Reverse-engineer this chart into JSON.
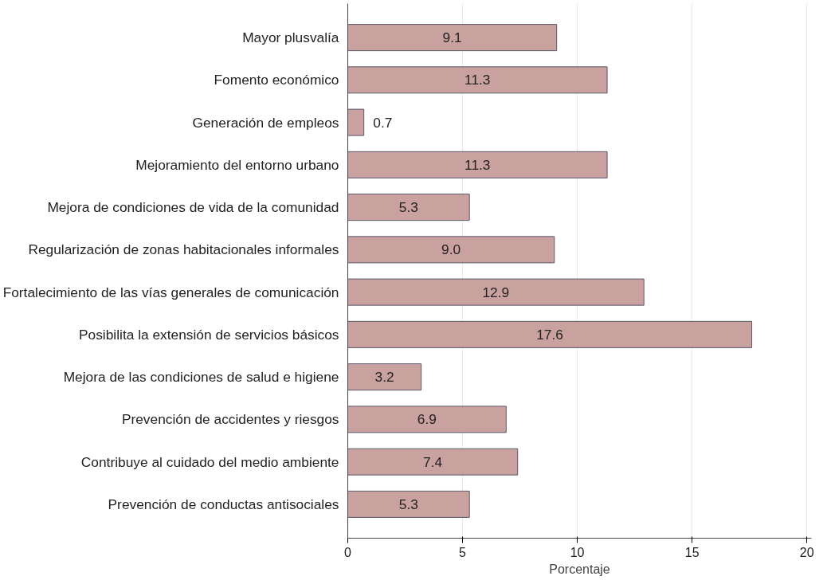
{
  "chart_data": {
    "type": "bar",
    "orientation": "horizontal",
    "xlabel": "Porcentaje",
    "categories": [
      "Mayor plusvalía",
      "Fomento económico",
      "Generación de empleos",
      "Mejoramiento del entorno urbano",
      "Mejora de condiciones de vida de la comunidad",
      "Regularización de zonas habitacionales informales",
      "Fortalecimiento de las vías generales de comunicación",
      "Posibilita la extensión de servicios básicos",
      "Mejora de las condiciones de salud e higiene",
      "Prevención de accidentes y riesgos",
      "Contribuye al cuidado del medio ambiente",
      "Prevención de conductas antisociales"
    ],
    "values": [
      9.1,
      11.3,
      0.7,
      11.3,
      5.3,
      9.0,
      12.9,
      17.6,
      3.2,
      6.9,
      7.4,
      5.3
    ],
    "color": "#c9a19f",
    "xlim": [
      0,
      20.2
    ],
    "xticks": [
      0,
      5,
      10,
      15,
      20
    ],
    "grid": "x",
    "value_labels": [
      "9.1",
      "11.3",
      "0.7",
      "11.3",
      "5.3",
      "9.0",
      "12.9",
      "17.6",
      "3.2",
      "6.9",
      "7.4",
      "5.3"
    ]
  }
}
